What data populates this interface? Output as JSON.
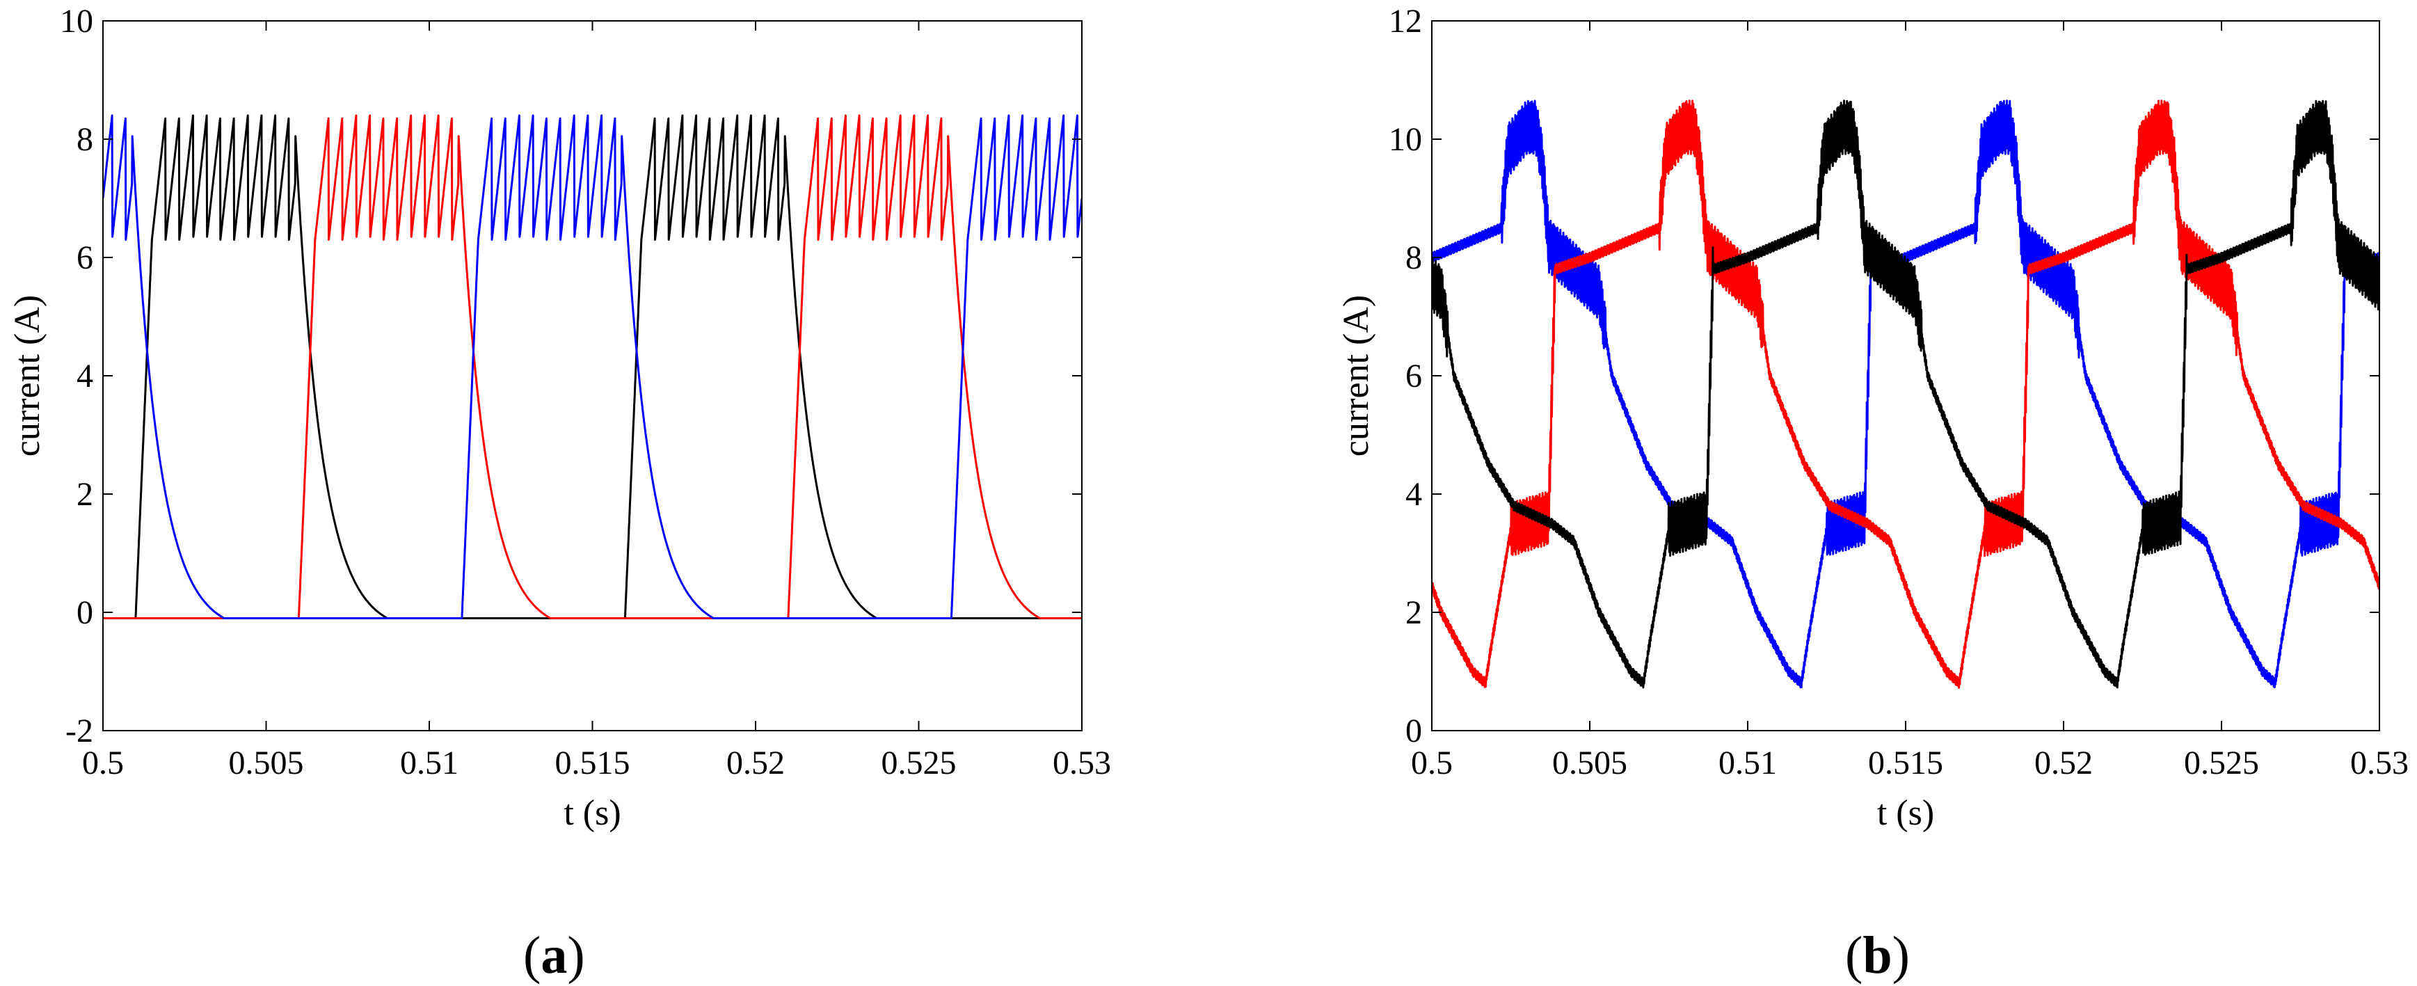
{
  "chart_data": [
    {
      "type": "line",
      "panel": "(a)",
      "panel_letter": "a",
      "xlabel": "t (s)",
      "ylabel": "current (A)",
      "xlim": [
        0.5,
        0.53
      ],
      "ylim": [
        -2,
        10
      ],
      "xticks": [
        0.5,
        0.505,
        0.51,
        0.515,
        0.52,
        0.525,
        0.53
      ],
      "xtick_labels": [
        "0.5",
        "0.505",
        "0.51",
        "0.515",
        "0.52",
        "0.525",
        "0.53"
      ],
      "yticks": [
        -2,
        0,
        2,
        4,
        6,
        8,
        10
      ],
      "ytick_labels": [
        "-2",
        "0",
        "2",
        "4",
        "6",
        "8",
        "10"
      ],
      "grid": false,
      "phase_period_s": 0.015,
      "series": [
        {
          "name": "phase-black",
          "color": "#000000",
          "on_start_s": 0.501,
          "on_end_s": 0.506,
          "offset_s": 0.0
        },
        {
          "name": "phase-red",
          "color": "#ff0000",
          "on_start_s": 0.506,
          "on_end_s": 0.511,
          "offset_s": 0.005
        },
        {
          "name": "phase-blue",
          "color": "#0000ff",
          "on_start_s": 0.511,
          "on_end_s": 0.516,
          "offset_s": 0.01
        }
      ],
      "levels": {
        "off": -0.1,
        "ripple_low": 6.3,
        "ripple_high": 8.4,
        "crossover": 4.0
      }
    },
    {
      "type": "line",
      "panel": "(b)",
      "panel_letter": "b",
      "xlabel": "t (s)",
      "ylabel": "current (A)",
      "xlim": [
        0.5,
        0.53
      ],
      "ylim": [
        0,
        12
      ],
      "xticks": [
        0.5,
        0.505,
        0.51,
        0.515,
        0.52,
        0.525,
        0.53
      ],
      "xtick_labels": [
        "0.5",
        "0.505",
        "0.51",
        "0.515",
        "0.52",
        "0.525",
        "0.53"
      ],
      "yticks": [
        0,
        2,
        4,
        6,
        8,
        10,
        12
      ],
      "ytick_labels": [
        "0",
        "2",
        "4",
        "6",
        "8",
        "10",
        "12"
      ],
      "grid": false,
      "phase_period_s": 0.015,
      "series": [
        {
          "name": "phase-blue",
          "color": "#0000ff",
          "keypoints": [
            [
              0.5,
              8.0
            ],
            [
              0.5022,
              8.5
            ],
            [
              0.5024,
              9.8
            ],
            [
              0.503,
              10.2
            ],
            [
              0.5033,
              10.2
            ],
            [
              0.5035,
              9.6
            ],
            [
              0.5037,
              8.2
            ],
            [
              0.5053,
              7.4
            ],
            [
              0.5057,
              6.0
            ],
            [
              0.5068,
              4.5
            ],
            [
              0.5076,
              3.8
            ],
            [
              0.5088,
              3.5
            ],
            [
              0.5095,
              3.2
            ],
            [
              0.5103,
              2.0
            ],
            [
              0.5113,
              1.0
            ],
            [
              0.5117,
              0.8
            ],
            [
              0.5119,
              1.5
            ],
            [
              0.5125,
              3.4
            ],
            [
              0.5137,
              3.6
            ],
            [
              0.5139,
              7.8
            ],
            [
              0.515,
              8.0
            ]
          ]
        },
        {
          "name": "phase-red",
          "color": "#ff0000",
          "keypoints": [
            [
              0.5,
              8.0
            ],
            [
              0.5022,
              8.5
            ],
            [
              0.5024,
              9.8
            ],
            [
              0.503,
              10.2
            ],
            [
              0.5033,
              10.2
            ],
            [
              0.5035,
              9.6
            ],
            [
              0.5037,
              8.2
            ],
            [
              0.5053,
              7.4
            ],
            [
              0.5057,
              6.0
            ],
            [
              0.5068,
              4.5
            ],
            [
              0.5076,
              3.8
            ],
            [
              0.5088,
              3.5
            ],
            [
              0.5095,
              3.2
            ],
            [
              0.5103,
              2.0
            ],
            [
              0.5113,
              1.0
            ],
            [
              0.5117,
              0.8
            ],
            [
              0.5119,
              1.5
            ],
            [
              0.5125,
              3.4
            ],
            [
              0.5137,
              3.6
            ],
            [
              0.5139,
              7.8
            ],
            [
              0.515,
              8.0
            ]
          ],
          "offset_s": 0.005
        },
        {
          "name": "phase-black",
          "color": "#000000",
          "keypoints": [
            [
              0.5,
              8.0
            ],
            [
              0.5022,
              8.5
            ],
            [
              0.5024,
              9.8
            ],
            [
              0.503,
              10.2
            ],
            [
              0.5033,
              10.2
            ],
            [
              0.5035,
              9.6
            ],
            [
              0.5037,
              8.2
            ],
            [
              0.5053,
              7.4
            ],
            [
              0.5057,
              6.0
            ],
            [
              0.5068,
              4.5
            ],
            [
              0.5076,
              3.8
            ],
            [
              0.5088,
              3.5
            ],
            [
              0.5095,
              3.2
            ],
            [
              0.5103,
              2.0
            ],
            [
              0.5113,
              1.0
            ],
            [
              0.5117,
              0.8
            ],
            [
              0.5119,
              1.5
            ],
            [
              0.5125,
              3.4
            ],
            [
              0.5137,
              3.6
            ],
            [
              0.5139,
              7.8
            ],
            [
              0.515,
              8.0
            ]
          ],
          "offset_s": 0.01
        }
      ]
    }
  ]
}
